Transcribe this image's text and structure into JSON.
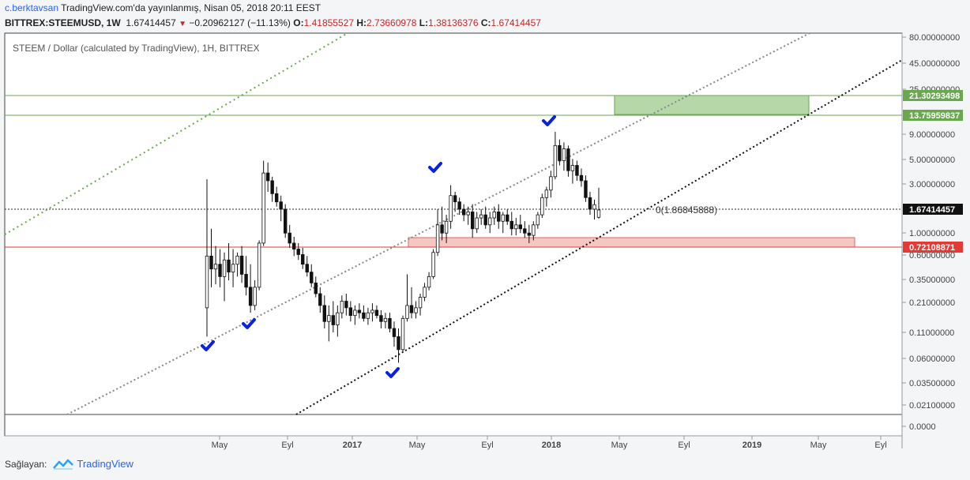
{
  "header": {
    "author": "c.berktavsan",
    "published": "TradingView.com'da yayınlanmış, Nisan 05, 2018 20:11 EEST",
    "symbol": "BITTREX:STEEMUSD, 1W",
    "price": "1.67414457",
    "change_arrow": "▼",
    "change": "−0.20962127 (−11.13%)",
    "o_label": "O:",
    "o": "1.41855527",
    "h_label": "H:",
    "h": "2.73660978",
    "l_label": "L:",
    "l": "1.38136376",
    "c_label": "C:",
    "c": "1.67414457"
  },
  "chart_data": {
    "type": "candlestick",
    "title": "STEEM / Dollar (calculated by TradingView), 1H, BITTREX",
    "y_scale": "log",
    "y_ticks": [
      "80.00000000",
      "45.00000000",
      "25.00000000",
      "9.00000000",
      "5.00000000",
      "3.00000000",
      "1.00000000",
      "0.60000000",
      "0.35000000",
      "0.21000000",
      "0.11000000",
      "0.06000000",
      "0.03500000",
      "0.02100000",
      "0.0000"
    ],
    "x_ticks": [
      "May",
      "Eyl",
      "2017",
      "May",
      "Eyl",
      "2018",
      "May",
      "Eyl",
      "2019",
      "May",
      "Eyl"
    ],
    "price_labels": [
      {
        "text": "21.30293498",
        "color": "#6aa84f"
      },
      {
        "text": "13.75959837",
        "color": "#6aa84f"
      },
      {
        "text": "1.67414457",
        "color": "#111111"
      },
      {
        "text": "0.72108871",
        "color": "#e53935"
      }
    ],
    "annotation": "0(1.86845888)",
    "candles": [
      [
        0.19,
        3.3,
        0.1,
        0.6
      ],
      [
        0.6,
        1.1,
        0.3,
        0.45
      ],
      [
        0.45,
        0.75,
        0.32,
        0.5
      ],
      [
        0.5,
        0.7,
        0.3,
        0.38
      ],
      [
        0.38,
        0.65,
        0.22,
        0.55
      ],
      [
        0.55,
        0.8,
        0.35,
        0.42
      ],
      [
        0.42,
        0.7,
        0.3,
        0.5
      ],
      [
        0.5,
        0.65,
        0.38,
        0.6
      ],
      [
        0.6,
        0.75,
        0.33,
        0.4
      ],
      [
        0.4,
        0.6,
        0.25,
        0.3
      ],
      [
        0.3,
        0.5,
        0.17,
        0.2
      ],
      [
        0.2,
        0.35,
        0.18,
        0.3
      ],
      [
        0.3,
        0.85,
        0.28,
        0.8
      ],
      [
        0.8,
        5.0,
        0.75,
        3.8
      ],
      [
        3.8,
        4.8,
        2.5,
        3.2
      ],
      [
        3.2,
        3.5,
        2.0,
        2.4
      ],
      [
        2.4,
        2.8,
        1.8,
        2.0
      ],
      [
        2.0,
        2.3,
        1.3,
        1.7
      ],
      [
        1.7,
        1.9,
        0.9,
        1.0
      ],
      [
        1.0,
        1.2,
        0.72,
        0.8
      ],
      [
        0.8,
        0.92,
        0.6,
        0.7
      ],
      [
        0.7,
        0.8,
        0.55,
        0.62
      ],
      [
        0.62,
        0.72,
        0.45,
        0.5
      ],
      [
        0.5,
        0.6,
        0.38,
        0.42
      ],
      [
        0.42,
        0.5,
        0.3,
        0.33
      ],
      [
        0.33,
        0.38,
        0.24,
        0.26
      ],
      [
        0.26,
        0.3,
        0.17,
        0.2
      ],
      [
        0.2,
        0.25,
        0.12,
        0.14
      ],
      [
        0.14,
        0.2,
        0.09,
        0.16
      ],
      [
        0.16,
        0.22,
        0.11,
        0.13
      ],
      [
        0.13,
        0.2,
        0.1,
        0.17
      ],
      [
        0.17,
        0.25,
        0.15,
        0.22
      ],
      [
        0.22,
        0.26,
        0.16,
        0.19
      ],
      [
        0.19,
        0.22,
        0.14,
        0.16
      ],
      [
        0.16,
        0.2,
        0.13,
        0.18
      ],
      [
        0.18,
        0.21,
        0.15,
        0.17
      ],
      [
        0.17,
        0.2,
        0.14,
        0.15
      ],
      [
        0.15,
        0.19,
        0.13,
        0.17
      ],
      [
        0.17,
        0.21,
        0.14,
        0.18
      ],
      [
        0.18,
        0.2,
        0.15,
        0.16
      ],
      [
        0.16,
        0.18,
        0.12,
        0.14
      ],
      [
        0.14,
        0.17,
        0.12,
        0.15
      ],
      [
        0.15,
        0.17,
        0.11,
        0.12
      ],
      [
        0.12,
        0.14,
        0.08,
        0.1
      ],
      [
        0.1,
        0.12,
        0.056,
        0.075
      ],
      [
        0.075,
        0.16,
        0.07,
        0.15
      ],
      [
        0.15,
        0.4,
        0.14,
        0.2
      ],
      [
        0.2,
        0.3,
        0.15,
        0.17
      ],
      [
        0.17,
        0.22,
        0.15,
        0.19
      ],
      [
        0.19,
        0.26,
        0.16,
        0.24
      ],
      [
        0.24,
        0.33,
        0.22,
        0.3
      ],
      [
        0.3,
        0.42,
        0.28,
        0.38
      ],
      [
        0.38,
        0.7,
        0.36,
        0.65
      ],
      [
        0.65,
        1.7,
        0.6,
        1.2
      ],
      [
        1.2,
        1.8,
        0.85,
        1.0
      ],
      [
        1.0,
        1.5,
        0.8,
        1.3
      ],
      [
        1.3,
        2.9,
        1.1,
        2.3
      ],
      [
        2.3,
        2.5,
        1.6,
        2.0
      ],
      [
        2.0,
        2.2,
        1.5,
        1.7
      ],
      [
        1.7,
        1.9,
        1.3,
        1.5
      ],
      [
        1.5,
        1.8,
        1.2,
        1.6
      ],
      [
        1.6,
        1.9,
        0.9,
        1.1
      ],
      [
        1.1,
        1.6,
        1.0,
        1.4
      ],
      [
        1.4,
        1.7,
        1.2,
        1.5
      ],
      [
        1.5,
        1.8,
        1.1,
        1.2
      ],
      [
        1.2,
        1.6,
        1.0,
        1.4
      ],
      [
        1.4,
        1.8,
        1.2,
        1.6
      ],
      [
        1.6,
        1.9,
        1.1,
        1.3
      ],
      [
        1.3,
        1.6,
        1.0,
        1.5
      ],
      [
        1.5,
        1.7,
        1.2,
        1.3
      ],
      [
        1.3,
        1.6,
        0.95,
        1.1
      ],
      [
        1.1,
        1.4,
        0.95,
        1.2
      ],
      [
        1.2,
        1.5,
        1.0,
        1.1
      ],
      [
        1.1,
        1.3,
        0.9,
        1.0
      ],
      [
        1.0,
        1.2,
        0.8,
        0.95
      ],
      [
        0.95,
        1.3,
        0.85,
        1.2
      ],
      [
        1.2,
        1.6,
        1.1,
        1.5
      ],
      [
        1.5,
        2.4,
        1.4,
        2.2
      ],
      [
        2.2,
        2.8,
        1.8,
        2.6
      ],
      [
        2.6,
        4.0,
        2.2,
        3.5
      ],
      [
        3.5,
        9.5,
        3.3,
        7.0
      ],
      [
        7.0,
        8.0,
        4.5,
        5.0
      ],
      [
        5.0,
        7.5,
        4.0,
        6.5
      ],
      [
        6.5,
        7.0,
        3.5,
        4.0
      ],
      [
        4.0,
        5.2,
        3.0,
        4.5
      ],
      [
        4.5,
        5.0,
        3.2,
        3.6
      ],
      [
        3.6,
        4.2,
        2.8,
        3.2
      ],
      [
        3.2,
        3.6,
        2.0,
        2.2
      ],
      [
        2.2,
        2.5,
        1.5,
        1.7
      ],
      [
        1.7,
        2.1,
        1.35,
        1.88
      ],
      [
        1.42,
        2.74,
        1.38,
        1.67
      ]
    ]
  },
  "footer": {
    "provider_label": "Sağlayan:",
    "brand": "TradingView"
  }
}
